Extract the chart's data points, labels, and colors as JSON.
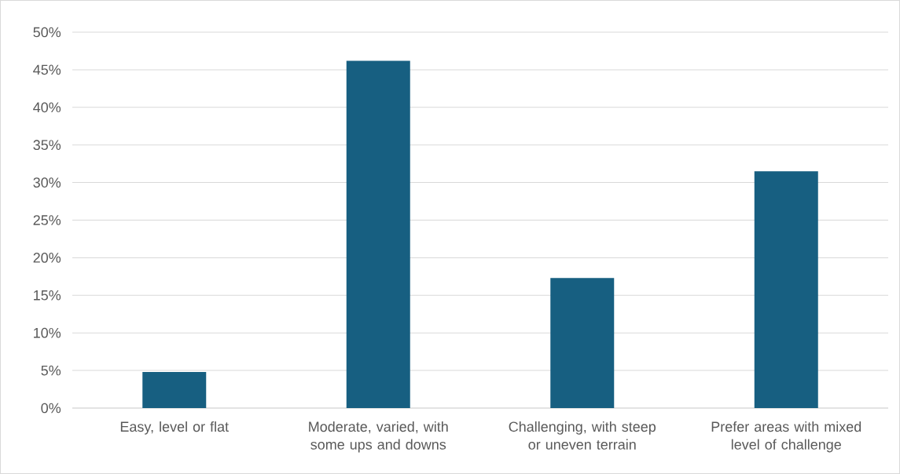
{
  "chart_data": {
    "type": "bar",
    "categories": [
      "Easy, level or flat",
      "Moderate, varied, with some ups and downs",
      "Challenging, with steep or uneven terrain",
      "Prefer areas with mixed level of challenge"
    ],
    "values": [
      4.8,
      46.2,
      17.3,
      31.5
    ],
    "color": "#175f81",
    "ylim": [
      0,
      50
    ],
    "yticks": [
      {
        "value": 0,
        "label": "0%"
      },
      {
        "value": 5,
        "label": "5%"
      },
      {
        "value": 10,
        "label": "10%"
      },
      {
        "value": 15,
        "label": "15%"
      },
      {
        "value": 20,
        "label": "20%"
      },
      {
        "value": 25,
        "label": "25%"
      },
      {
        "value": 30,
        "label": "30%"
      },
      {
        "value": 35,
        "label": "35%"
      },
      {
        "value": 40,
        "label": "40%"
      },
      {
        "value": 45,
        "label": "45%"
      },
      {
        "value": 50,
        "label": "50%"
      }
    ],
    "grid": "y"
  }
}
